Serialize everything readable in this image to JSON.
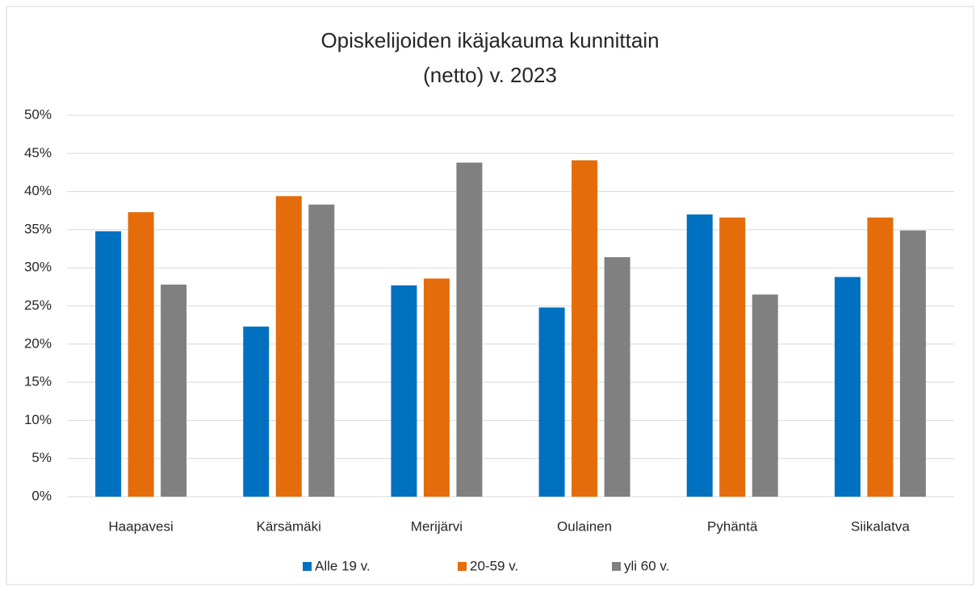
{
  "chart_data": {
    "type": "bar",
    "title": [
      "Opiskelijoiden ikäjakauma kunnittain",
      "(netto) v. 2023"
    ],
    "categories": [
      "Haapavesi",
      "Kärsämäki",
      "Merijärvi",
      "Oulainen",
      "Pyhäntä",
      "Siikalatva"
    ],
    "series": [
      {
        "name": "Alle 19 v.",
        "color": "#0070c0",
        "values": [
          34.8,
          22.3,
          27.7,
          24.8,
          37.0,
          28.8
        ]
      },
      {
        "name": "20-59 v.",
        "color": "#e46c0a",
        "values": [
          37.3,
          39.4,
          28.6,
          44.1,
          36.6,
          36.6
        ]
      },
      {
        "name": "yli 60 v.",
        "color": "#808080",
        "values": [
          27.8,
          38.3,
          43.8,
          31.4,
          26.5,
          34.9
        ]
      }
    ],
    "ylim": [
      0,
      50
    ],
    "yticks": [
      {
        "value": 0,
        "label": "0%"
      },
      {
        "value": 5,
        "label": "5%"
      },
      {
        "value": 10,
        "label": "10%"
      },
      {
        "value": 15,
        "label": "15%"
      },
      {
        "value": 20,
        "label": "20%"
      },
      {
        "value": 25,
        "label": "25%"
      },
      {
        "value": 30,
        "label": "30%"
      },
      {
        "value": 35,
        "label": "35%"
      },
      {
        "value": 40,
        "label": "40%"
      },
      {
        "value": 45,
        "label": "45%"
      },
      {
        "value": 50,
        "label": "50%"
      }
    ],
    "grid": true,
    "legend": "bottom"
  }
}
